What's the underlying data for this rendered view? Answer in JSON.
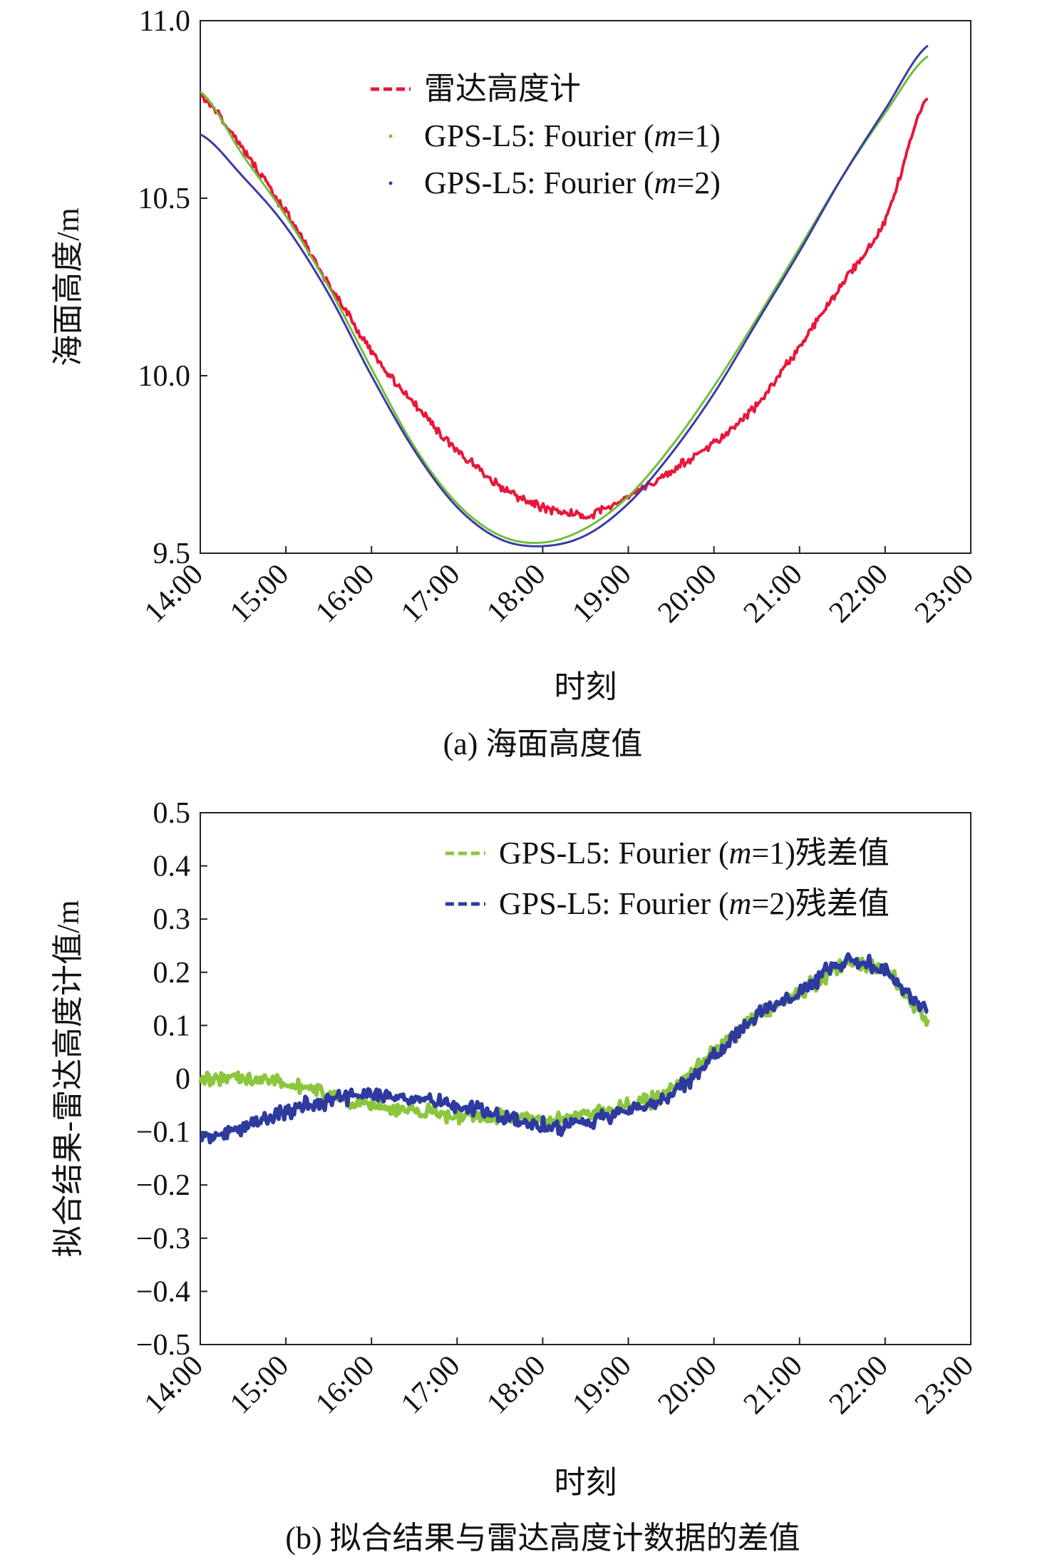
{
  "chart_data": [
    {
      "type": "line",
      "panel": "a",
      "caption": "(a) 海面高度值",
      "xlabel": "时刻",
      "ylabel": "海面高度/m",
      "x_tick_labels": [
        "14:00",
        "15:00",
        "16:00",
        "17:00",
        "18:00",
        "19:00",
        "20:00",
        "21:00",
        "22:00",
        "23:00"
      ],
      "xlim_hours": [
        14,
        23
      ],
      "y_ticks": [
        9.5,
        10.0,
        10.5,
        11.0
      ],
      "y_tick_labels": [
        "9.5",
        "10.0",
        "10.5",
        "11.0"
      ],
      "ylim": [
        9.5,
        11.0
      ],
      "grid": false,
      "legend_position": "top-center",
      "series": [
        {
          "name": "雷达高度计",
          "color": "#e8173a",
          "style": "noisy-dashed",
          "x": [
            14.0,
            14.5,
            15.0,
            15.5,
            16.0,
            16.5,
            17.0,
            17.5,
            18.0,
            18.5,
            19.0,
            19.5,
            20.0,
            20.5,
            21.0,
            21.5,
            22.0,
            22.5
          ],
          "y": [
            10.79,
            10.64,
            10.46,
            10.26,
            10.07,
            9.92,
            9.79,
            9.69,
            9.63,
            9.61,
            9.66,
            9.73,
            9.81,
            9.92,
            10.08,
            10.26,
            10.44,
            10.79
          ]
        },
        {
          "name": "GPS-L5: Fourier (m=1)",
          "legend_label_parts": [
            "GPS-L5: Fourier (",
            "m",
            "=1)"
          ],
          "color": "#6fbf3a",
          "style": "solid",
          "x": [
            14.0,
            14.5,
            15.0,
            15.5,
            16.0,
            16.5,
            17.0,
            17.5,
            18.0,
            18.5,
            19.0,
            19.5,
            20.0,
            20.5,
            21.0,
            21.5,
            22.0,
            22.5
          ],
          "y": [
            10.8,
            10.62,
            10.45,
            10.25,
            10.02,
            9.8,
            9.64,
            9.55,
            9.53,
            9.57,
            9.66,
            9.8,
            9.97,
            10.16,
            10.36,
            10.56,
            10.74,
            10.9
          ]
        },
        {
          "name": "GPS-L5: Fourier (m=2)",
          "legend_label_parts": [
            "GPS-L5: Fourier (",
            "m",
            "=2)"
          ],
          "color": "#3a3aa8",
          "style": "solid",
          "x": [
            14.0,
            14.5,
            15.0,
            15.5,
            16.0,
            16.5,
            17.0,
            17.5,
            18.0,
            18.5,
            19.0,
            19.5,
            20.0,
            20.5,
            21.0,
            21.5,
            22.0,
            22.5
          ],
          "y": [
            10.68,
            10.56,
            10.42,
            10.23,
            10.0,
            9.79,
            9.63,
            9.54,
            9.52,
            9.55,
            9.64,
            9.78,
            9.95,
            10.15,
            10.35,
            10.56,
            10.75,
            10.93
          ]
        }
      ]
    },
    {
      "type": "line",
      "panel": "b",
      "caption": "(b) 拟合结果与雷达高度计数据的差值",
      "xlabel": "时刻",
      "ylabel": "拟合结果-雷达高度计值/m",
      "x_tick_labels": [
        "14:00",
        "15:00",
        "16:00",
        "17:00",
        "18:00",
        "19:00",
        "20:00",
        "21:00",
        "22:00",
        "23:00"
      ],
      "xlim_hours": [
        14,
        23
      ],
      "y_ticks": [
        -0.5,
        -0.4,
        -0.3,
        -0.2,
        -0.1,
        0,
        0.1,
        0.2,
        0.3,
        0.4,
        0.5
      ],
      "y_tick_labels": [
        "−0.5",
        "−0.4",
        "−0.3",
        "−0.2",
        "−0.1",
        "0",
        "0.1",
        "0.2",
        "0.3",
        "0.4",
        "0.5"
      ],
      "ylim": [
        -0.5,
        0.5
      ],
      "grid": false,
      "legend_position": "top-right",
      "series": [
        {
          "name": "GPS-L5: Fourier (m=1)残差值",
          "legend_label_parts": [
            "GPS-L5: Fourier (",
            "m",
            "=1)残差值"
          ],
          "color": "#8cc63f",
          "style": "noisy",
          "x": [
            14.0,
            14.5,
            15.0,
            15.5,
            16.0,
            16.5,
            17.0,
            17.5,
            18.0,
            18.5,
            19.0,
            19.5,
            20.0,
            20.5,
            21.0,
            21.5,
            22.0,
            22.5
          ],
          "y": [
            0.0,
            0.0,
            -0.01,
            -0.03,
            -0.05,
            -0.06,
            -0.07,
            -0.07,
            -0.08,
            -0.07,
            -0.05,
            -0.02,
            0.05,
            0.12,
            0.16,
            0.21,
            0.2,
            0.11
          ]
        },
        {
          "name": "GPS-L5: Fourier (m=2)残差值",
          "legend_label_parts": [
            "GPS-L5: Fourier (",
            "m",
            "=2)残差值"
          ],
          "color": "#2e3a9f",
          "style": "noisy",
          "x": [
            14.0,
            14.5,
            15.0,
            15.5,
            16.0,
            16.5,
            17.0,
            17.5,
            18.0,
            18.5,
            19.0,
            19.5,
            20.0,
            20.5,
            21.0,
            21.5,
            22.0,
            22.5
          ],
          "y": [
            -0.11,
            -0.09,
            -0.06,
            -0.04,
            -0.03,
            -0.04,
            -0.05,
            -0.07,
            -0.09,
            -0.08,
            -0.06,
            -0.03,
            0.04,
            0.12,
            0.16,
            0.22,
            0.2,
            0.13
          ]
        }
      ]
    }
  ]
}
